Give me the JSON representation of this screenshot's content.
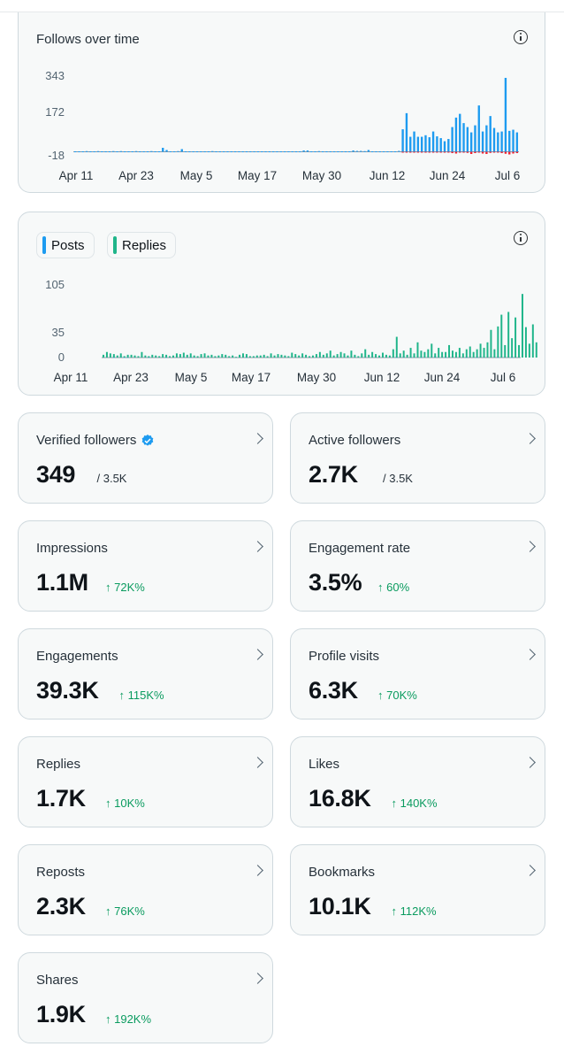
{
  "colors": {
    "posts": "#1d9bf0",
    "replies": "#1fb58a",
    "negative": "#f4212e",
    "positive_change": "#0a9b5f"
  },
  "follows_chart": {
    "title": "Follows over time",
    "info_icon": "info-icon",
    "chart_data": {
      "type": "bar",
      "y_ticks": [
        "343",
        "172",
        "-18"
      ],
      "ylim": [
        -18,
        343
      ],
      "x_ticks": [
        "Apr 11",
        "Apr 23",
        "May 5",
        "May 17",
        "May 30",
        "Jun 12",
        "Jun 24",
        "Jul 6"
      ],
      "series": [
        {
          "name": "follows",
          "color": "#1d9bf0",
          "values": [
            2,
            2,
            2,
            3,
            2,
            2,
            3,
            2,
            2,
            2,
            3,
            2,
            3,
            2,
            2,
            2,
            3,
            2,
            2,
            2,
            3,
            2,
            2,
            18,
            8,
            2,
            2,
            3,
            12,
            2,
            2,
            2,
            2,
            2,
            2,
            2,
            3,
            2,
            2,
            2,
            2,
            2,
            2,
            2,
            2,
            2,
            2,
            2,
            2,
            2,
            2,
            2,
            2,
            2,
            2,
            2,
            2,
            2,
            2,
            2,
            6,
            6,
            2,
            2,
            3,
            2,
            2,
            2,
            2,
            2,
            2,
            2,
            2,
            6,
            4,
            4,
            3,
            8,
            2,
            2,
            2,
            2,
            2,
            2,
            2,
            4,
            102,
            175,
            68,
            92,
            68,
            68,
            75,
            66,
            92,
            70,
            62,
            48,
            58,
            112,
            155,
            172,
            130,
            112,
            88,
            120,
            210,
            92,
            120,
            162,
            108,
            88,
            92,
            335,
            95,
            100,
            88
          ]
        },
        {
          "name": "unfollows",
          "color": "#f4212e",
          "values": [
            0,
            0,
            0,
            0,
            0,
            0,
            0,
            0,
            0,
            0,
            0,
            0,
            0,
            0,
            0,
            0,
            0,
            0,
            0,
            0,
            0,
            0,
            0,
            0,
            0,
            0,
            0,
            0,
            0,
            0,
            0,
            0,
            0,
            0,
            0,
            0,
            0,
            0,
            0,
            0,
            0,
            0,
            0,
            0,
            0,
            0,
            0,
            0,
            0,
            0,
            0,
            0,
            0,
            0,
            0,
            0,
            0,
            0,
            0,
            0,
            0,
            0,
            0,
            0,
            0,
            0,
            0,
            0,
            0,
            0,
            0,
            0,
            0,
            0,
            0,
            0,
            0,
            0,
            0,
            0,
            0,
            0,
            0,
            0,
            0,
            0,
            -2,
            -3,
            -4,
            -2,
            -3,
            -2,
            -4,
            -3,
            -2,
            -3,
            -4,
            -2,
            -3,
            -6,
            -8,
            -4,
            -3,
            -5,
            -10,
            -6,
            -4,
            -8,
            -10,
            -5,
            -3,
            -4,
            -6,
            -9,
            -12,
            -8,
            -6
          ]
        }
      ]
    }
  },
  "posts_chart": {
    "legend": [
      {
        "label": "Posts",
        "color": "#1d9bf0"
      },
      {
        "label": "Replies",
        "color": "#1fb58a"
      }
    ],
    "info_icon": "info-icon",
    "chart_data": {
      "type": "bar",
      "y_ticks": [
        "105",
        "35",
        "0"
      ],
      "ylim": [
        0,
        105
      ],
      "x_ticks": [
        "Apr 11",
        "Apr 23",
        "May 5",
        "May 17",
        "May 30",
        "Jun 12",
        "Jun 24",
        "Jul 6"
      ],
      "series": [
        {
          "name": "Posts",
          "color": "#1d9bf0",
          "values": [
            0,
            0,
            0,
            1,
            0,
            2,
            1,
            1,
            0,
            0,
            0,
            0,
            0,
            1,
            0,
            0,
            0,
            0,
            1,
            0,
            0,
            0,
            0,
            0,
            0,
            1,
            0,
            0,
            0,
            0,
            0,
            0,
            0,
            0,
            0,
            0,
            0,
            0,
            0,
            0,
            0,
            1,
            0,
            0,
            0,
            0,
            0,
            0,
            0,
            0,
            0,
            0,
            0,
            0,
            0,
            0,
            0,
            0,
            0,
            0,
            0,
            0,
            0,
            0,
            0,
            0,
            0,
            0,
            0,
            0,
            0,
            0,
            0,
            0,
            0,
            0,
            0,
            0,
            0,
            0,
            0,
            0,
            0,
            0,
            1,
            0,
            2,
            0,
            1,
            0,
            0,
            1,
            0,
            0,
            0,
            2,
            0,
            0,
            1,
            0,
            0,
            0,
            0,
            0,
            1,
            0,
            0,
            1,
            2,
            0,
            0,
            0,
            0,
            1,
            0,
            0,
            0,
            1,
            0,
            0
          ]
        },
        {
          "name": "Replies",
          "color": "#1fb58a",
          "values": [
            4,
            8,
            6,
            5,
            3,
            6,
            2,
            4,
            4,
            3,
            2,
            8,
            3,
            2,
            4,
            3,
            2,
            5,
            4,
            2,
            3,
            6,
            5,
            7,
            4,
            6,
            3,
            2,
            5,
            6,
            3,
            4,
            2,
            3,
            5,
            4,
            2,
            3,
            1,
            4,
            6,
            5,
            2,
            2,
            3,
            3,
            4,
            2,
            6,
            3,
            5,
            4,
            3,
            2,
            7,
            5,
            3,
            6,
            4,
            2,
            3,
            5,
            8,
            4,
            6,
            10,
            3,
            5,
            8,
            6,
            3,
            10,
            4,
            2,
            6,
            12,
            4,
            8,
            5,
            3,
            7,
            4,
            3,
            12,
            30,
            6,
            10,
            4,
            14,
            6,
            22,
            10,
            8,
            12,
            20,
            6,
            14,
            8,
            8,
            18,
            10,
            8,
            14,
            6,
            12,
            16,
            8,
            12,
            20,
            14,
            22,
            40,
            12,
            45,
            62,
            18,
            66,
            28,
            58,
            18,
            92,
            44,
            20,
            48,
            22
          ]
        }
      ]
    }
  },
  "stats": [
    {
      "label": "Verified followers",
      "value": "349",
      "sub": "/ 3.5K",
      "verified": true
    },
    {
      "label": "Active followers",
      "value": "2.7K",
      "sub": "/ 3.5K"
    },
    {
      "label": "Impressions",
      "value": "1.1M",
      "change": "↑ 72K%"
    },
    {
      "label": "Engagement rate",
      "value": "3.5%",
      "change": "↑ 60%"
    },
    {
      "label": "Engagements",
      "value": "39.3K",
      "change": "↑ 115K%"
    },
    {
      "label": "Profile visits",
      "value": "6.3K",
      "change": "↑ 70K%"
    },
    {
      "label": "Replies",
      "value": "1.7K",
      "change": "↑ 10K%"
    },
    {
      "label": "Likes",
      "value": "16.8K",
      "change": "↑ 140K%"
    },
    {
      "label": "Reposts",
      "value": "2.3K",
      "change": "↑ 76K%"
    },
    {
      "label": "Bookmarks",
      "value": "10.1K",
      "change": "↑ 112K%"
    },
    {
      "label": "Shares",
      "value": "1.9K",
      "change": "↑ 192K%"
    }
  ]
}
